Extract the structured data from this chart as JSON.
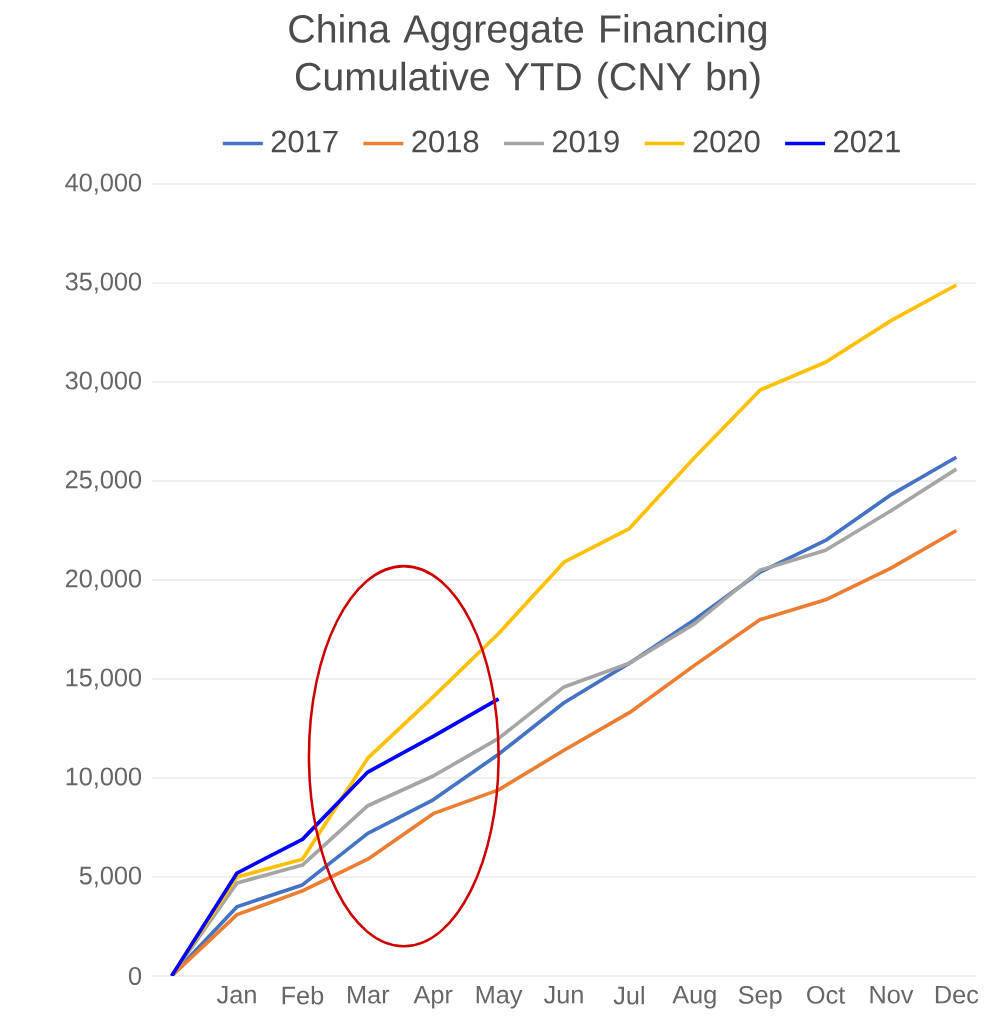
{
  "chart_data": {
    "type": "line",
    "title": "China Aggregate Financing Cumulative YTD (CNY bn)",
    "categories": [
      null,
      "Jan",
      "Feb",
      "Mar",
      "Apr",
      "May",
      "Jun",
      "Jul",
      "Aug",
      "Sep",
      "Oct",
      "Nov",
      "Dec"
    ],
    "series": [
      {
        "name": "2017",
        "color": "#4472c4",
        "values": [
          0,
          3500,
          4600,
          7200,
          8900,
          11200,
          13800,
          15800,
          18000,
          20400,
          22000,
          24300,
          26200
        ]
      },
      {
        "name": "2018",
        "color": "#ed7d31",
        "values": [
          0,
          3100,
          4300,
          5900,
          8200,
          9400,
          11400,
          13300,
          15700,
          18000,
          19000,
          20600,
          22500
        ]
      },
      {
        "name": "2019",
        "color": "#a5a5a5",
        "values": [
          0,
          4700,
          5600,
          8600,
          10100,
          12000,
          14600,
          15800,
          17800,
          20500,
          21500,
          23500,
          25600
        ]
      },
      {
        "name": "2020",
        "color": "#ffc000",
        "values": [
          0,
          5000,
          5900,
          11000,
          14100,
          17300,
          20900,
          22600,
          26200,
          29600,
          31000,
          33100,
          34900
        ]
      },
      {
        "name": "2021",
        "color": "#0000ff",
        "values": [
          0,
          5200,
          6900,
          10300,
          12100,
          14000,
          null,
          null,
          null,
          null,
          null,
          null,
          null
        ]
      }
    ],
    "ylim": [
      0,
      40000
    ],
    "yticks": [
      {
        "value": 0,
        "label": "0"
      },
      {
        "value": 5000,
        "label": "5,000"
      },
      {
        "value": 10000,
        "label": "10,000"
      },
      {
        "value": 15000,
        "label": "15,000"
      },
      {
        "value": 20000,
        "label": "20,000"
      },
      {
        "value": 25000,
        "label": "25,000"
      },
      {
        "value": 30000,
        "label": "30,000"
      },
      {
        "value": 35000,
        "label": "35,000"
      },
      {
        "value": 40000,
        "label": "40,000"
      }
    ],
    "grid": "y",
    "legend": "top",
    "marker": "none",
    "line_style": "solid"
  }
}
